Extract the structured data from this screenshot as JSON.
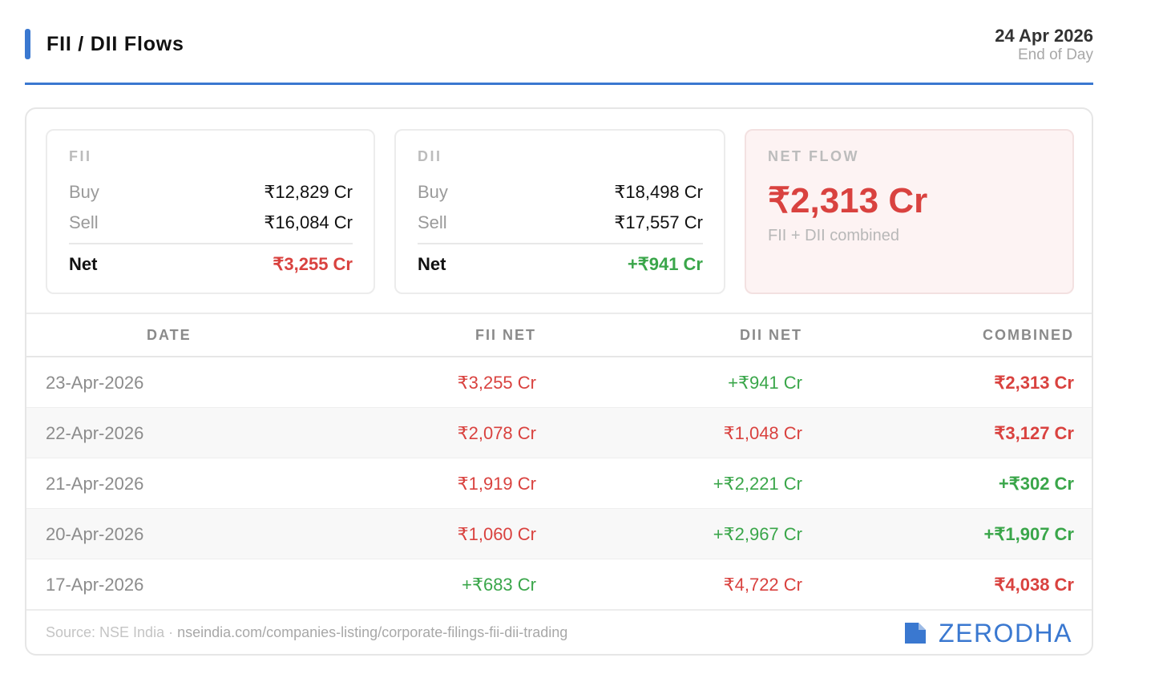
{
  "header": {
    "title": "FII / DII Flows",
    "date": "24 Apr 2026",
    "subtitle": "End of Day"
  },
  "summary": {
    "fii": {
      "label": "FII",
      "buy_label": "Buy",
      "buy": "₹12,829 Cr",
      "sell_label": "Sell",
      "sell": "₹16,084 Cr",
      "net_label": "Net",
      "net": "₹3,255 Cr",
      "net_sign": "negative"
    },
    "dii": {
      "label": "DII",
      "buy_label": "Buy",
      "buy": "₹18,498 Cr",
      "sell_label": "Sell",
      "sell": "₹17,557 Cr",
      "net_label": "Net",
      "net": "+₹941 Cr",
      "net_sign": "positive"
    },
    "net_flow": {
      "label": "NET FLOW",
      "value": "₹2,313 Cr",
      "note": "FII + DII combined"
    }
  },
  "table": {
    "columns": [
      "DATE",
      "FII NET",
      "DII NET",
      "COMBINED"
    ],
    "rows": [
      {
        "date": "23-Apr-2026",
        "fii": "₹3,255 Cr",
        "fii_sign": "negative",
        "dii": "+₹941 Cr",
        "dii_sign": "positive",
        "combined": "₹2,313 Cr",
        "combined_sign": "negative"
      },
      {
        "date": "22-Apr-2026",
        "fii": "₹2,078 Cr",
        "fii_sign": "negative",
        "dii": "₹1,048 Cr",
        "dii_sign": "negative",
        "combined": "₹3,127 Cr",
        "combined_sign": "negative"
      },
      {
        "date": "21-Apr-2026",
        "fii": "₹1,919 Cr",
        "fii_sign": "negative",
        "dii": "+₹2,221 Cr",
        "dii_sign": "positive",
        "combined": "+₹302 Cr",
        "combined_sign": "positive"
      },
      {
        "date": "20-Apr-2026",
        "fii": "₹1,060 Cr",
        "fii_sign": "negative",
        "dii": "+₹2,967 Cr",
        "dii_sign": "positive",
        "combined": "+₹1,907 Cr",
        "combined_sign": "positive"
      },
      {
        "date": "17-Apr-2026",
        "fii": "+₹683 Cr",
        "fii_sign": "positive",
        "dii": "₹4,722 Cr",
        "dii_sign": "negative",
        "combined": "₹4,038 Cr",
        "combined_sign": "negative"
      }
    ]
  },
  "footer": {
    "source_label": "Source: NSE India",
    "separator": " · ",
    "source_url": "nseindia.com/companies-listing/corporate-filings-fii-dii-trading",
    "logo_icon": "zerodha-logo-icon",
    "logo_text": "ZERODHA"
  },
  "colors": {
    "accent": "#3a78d0",
    "negative": "#d9423f",
    "positive": "#3aa64a"
  }
}
